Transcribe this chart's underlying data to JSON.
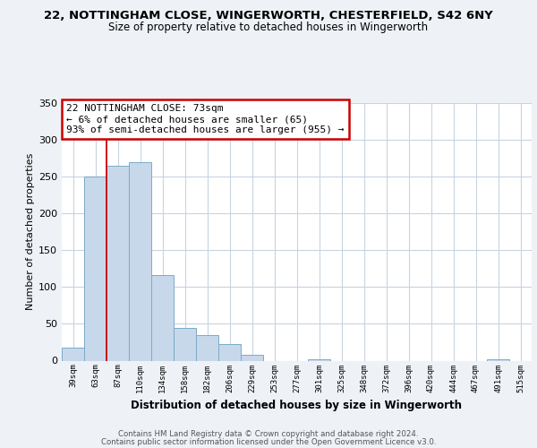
{
  "title1": "22, NOTTINGHAM CLOSE, WINGERWORTH, CHESTERFIELD, S42 6NY",
  "title2": "Size of property relative to detached houses in Wingerworth",
  "xlabel": "Distribution of detached houses by size in Wingerworth",
  "ylabel": "Number of detached properties",
  "bin_labels": [
    "39sqm",
    "63sqm",
    "87sqm",
    "110sqm",
    "134sqm",
    "158sqm",
    "182sqm",
    "206sqm",
    "229sqm",
    "253sqm",
    "277sqm",
    "301sqm",
    "325sqm",
    "348sqm",
    "372sqm",
    "396sqm",
    "420sqm",
    "444sqm",
    "467sqm",
    "491sqm",
    "515sqm"
  ],
  "bar_heights": [
    18,
    250,
    265,
    270,
    116,
    45,
    35,
    22,
    8,
    0,
    0,
    2,
    0,
    0,
    0,
    0,
    0,
    0,
    0,
    2,
    0
  ],
  "bar_color": "#c8d8eb",
  "bar_edge_color": "#7aaac8",
  "vline_color": "#cc0000",
  "ylim": [
    0,
    350
  ],
  "yticks": [
    0,
    50,
    100,
    150,
    200,
    250,
    300,
    350
  ],
  "annotation_title": "22 NOTTINGHAM CLOSE: 73sqm",
  "annotation_line1": "← 6% of detached houses are smaller (65)",
  "annotation_line2": "93% of semi-detached houses are larger (955) →",
  "annotation_box_color": "#cc0000",
  "footer1": "Contains HM Land Registry data © Crown copyright and database right 2024.",
  "footer2": "Contains public sector information licensed under the Open Government Licence v3.0.",
  "background_color": "#eef2f7",
  "plot_bg_color": "#ffffff",
  "grid_color": "#c8d4e0"
}
